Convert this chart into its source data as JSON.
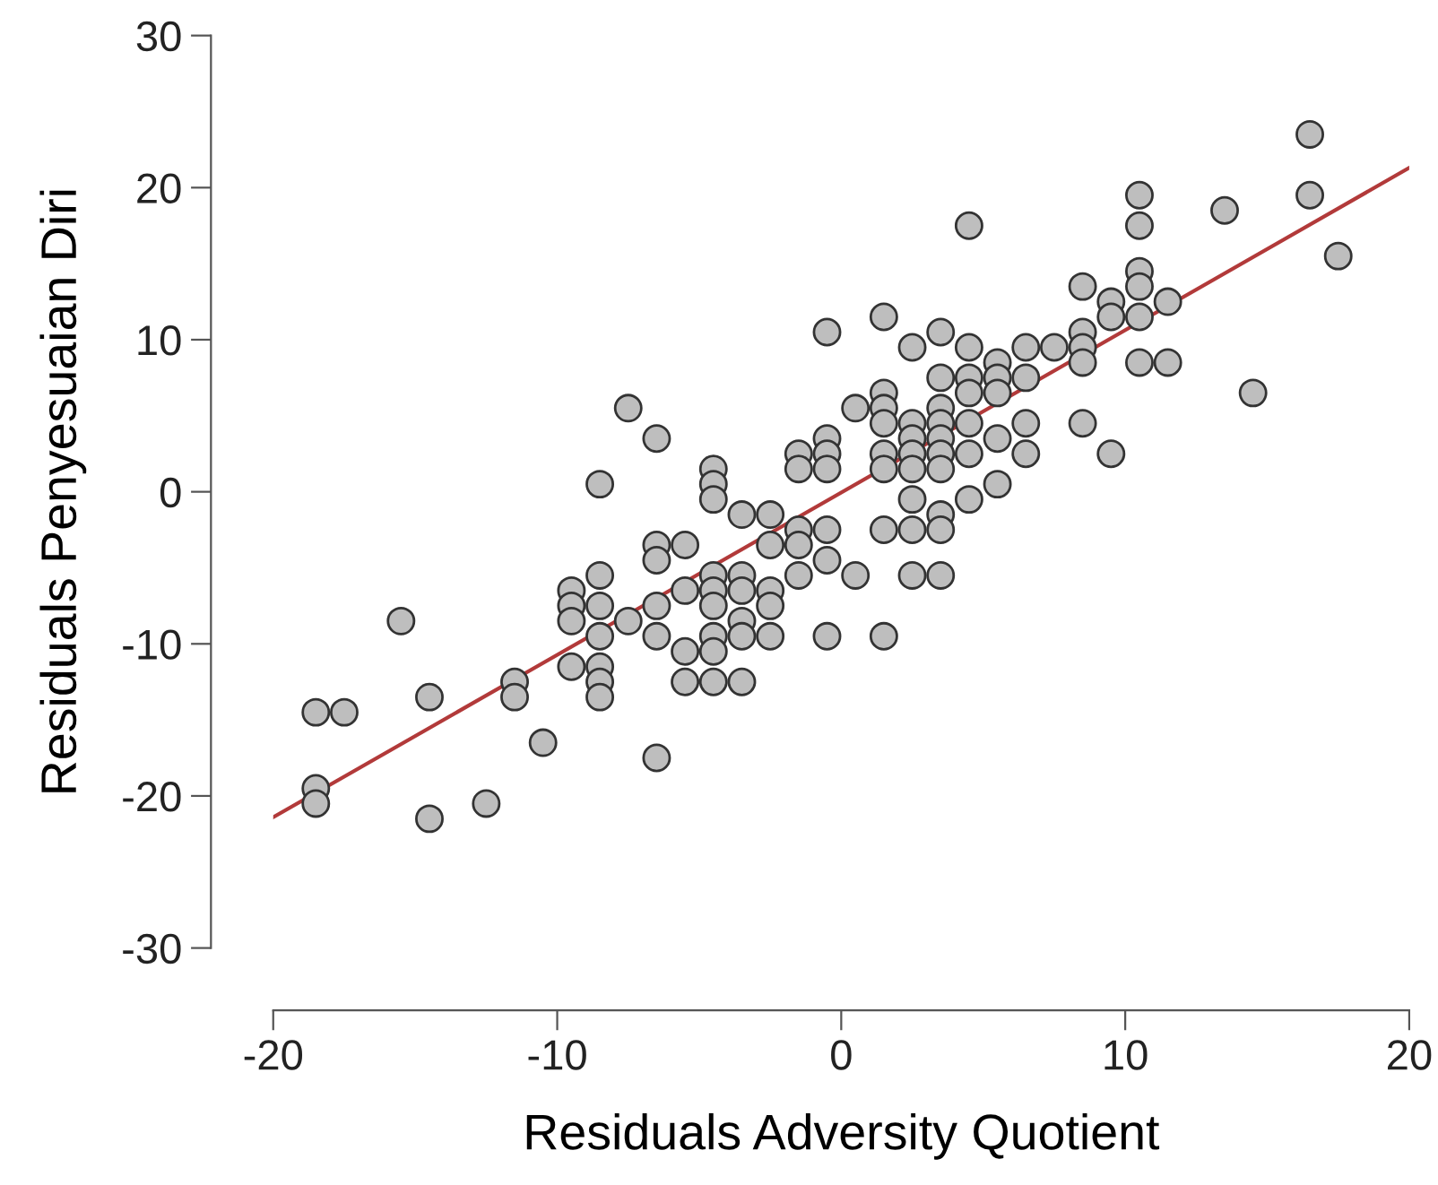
{
  "chart_data": {
    "type": "scatter",
    "xlabel": "Residuals Adversity Quotient",
    "ylabel": "Residuals Penyesuaian Diri",
    "xlim": [
      -20,
      20
    ],
    "xticks": [
      -20,
      -10,
      0,
      10,
      20
    ],
    "ylim": [
      -30,
      30
    ],
    "yticks": [
      -30,
      -20,
      -10,
      0,
      10,
      20,
      30
    ],
    "grid": false,
    "series": [
      {
        "marker": "circle",
        "color": "#bebebe",
        "x": [
          -18.5,
          -18.5,
          -18.5,
          -17.5,
          -15.5,
          -14.5,
          -14.5,
          -12.5,
          -11.5,
          -11.5,
          -10.5,
          -9.5,
          -9.5,
          -9.5,
          -9.5,
          -8.5,
          -8.5,
          -8.5,
          -8.5,
          -8.5,
          -8.5,
          -8.5,
          -7.5,
          -7.5,
          -6.5,
          -6.5,
          -6.5,
          -6.5,
          -6.5,
          -6.5,
          -5.5,
          -5.5,
          -5.5,
          -5.5,
          -4.5,
          -4.5,
          -4.5,
          -4.5,
          -4.5,
          -4.5,
          -4.5,
          -4.5,
          -4.5,
          -3.5,
          -3.5,
          -3.5,
          -3.5,
          -3.5,
          -3.5,
          -2.5,
          -2.5,
          -2.5,
          -2.5,
          -2.5,
          -1.5,
          -1.5,
          -1.5,
          -1.5,
          -1.5,
          -0.5,
          -0.5,
          -0.5,
          -0.5,
          -0.5,
          -0.5,
          -0.5,
          0.5,
          0.5,
          1.5,
          1.5,
          1.5,
          1.5,
          1.5,
          1.5,
          1.5,
          1.5,
          2.5,
          2.5,
          2.5,
          2.5,
          2.5,
          2.5,
          2.5,
          2.5,
          3.5,
          3.5,
          3.5,
          3.5,
          3.5,
          3.5,
          3.5,
          3.5,
          3.5,
          3.5,
          4.5,
          4.5,
          4.5,
          4.5,
          4.5,
          4.5,
          4.5,
          5.5,
          5.5,
          5.5,
          5.5,
          5.5,
          6.5,
          6.5,
          6.5,
          6.5,
          7.5,
          8.5,
          8.5,
          8.5,
          8.5,
          8.5,
          9.5,
          9.5,
          9.5,
          10.5,
          10.5,
          10.5,
          10.5,
          10.5,
          10.5,
          11.5,
          11.5,
          13.5,
          14.5,
          16.5,
          16.5,
          17.5
        ],
        "values": [
          -14.5,
          -19.5,
          -20.5,
          -14.5,
          -8.5,
          -13.5,
          -21.5,
          -20.5,
          -12.5,
          -13.5,
          -16.5,
          -6.5,
          -7.5,
          -8.5,
          -11.5,
          0.5,
          -5.5,
          -7.5,
          -9.5,
          -11.5,
          -12.5,
          -13.5,
          5.5,
          -8.5,
          3.5,
          -3.5,
          -4.5,
          -7.5,
          -9.5,
          -17.5,
          -3.5,
          -6.5,
          -10.5,
          -12.5,
          1.5,
          0.5,
          -0.5,
          -5.5,
          -6.5,
          -7.5,
          -9.5,
          -10.5,
          -12.5,
          -1.5,
          -5.5,
          -6.5,
          -8.5,
          -9.5,
          -12.5,
          -1.5,
          -3.5,
          -6.5,
          -7.5,
          -9.5,
          2.5,
          1.5,
          -2.5,
          -3.5,
          -5.5,
          10.5,
          3.5,
          2.5,
          1.5,
          -2.5,
          -4.5,
          -9.5,
          5.5,
          -5.5,
          11.5,
          6.5,
          5.5,
          4.5,
          2.5,
          1.5,
          -2.5,
          -9.5,
          9.5,
          4.5,
          3.5,
          2.5,
          1.5,
          -0.5,
          -2.5,
          -5.5,
          10.5,
          7.5,
          5.5,
          4.5,
          3.5,
          2.5,
          1.5,
          -1.5,
          -2.5,
          -5.5,
          17.5,
          9.5,
          7.5,
          6.5,
          4.5,
          2.5,
          -0.5,
          8.5,
          7.5,
          6.5,
          3.5,
          0.5,
          9.5,
          7.5,
          4.5,
          2.5,
          9.5,
          13.5,
          10.5,
          9.5,
          8.5,
          4.5,
          12.5,
          11.5,
          2.5,
          19.5,
          17.5,
          14.5,
          13.5,
          11.5,
          8.5,
          12.5,
          8.5,
          18.5,
          6.5,
          23.5,
          19.5,
          15.5
        ]
      },
      {
        "type": "line",
        "color": "#b23a3a",
        "line_style": "solid",
        "x": [
          -20,
          20
        ],
        "values": [
          -21.4,
          21.3
        ]
      }
    ]
  }
}
